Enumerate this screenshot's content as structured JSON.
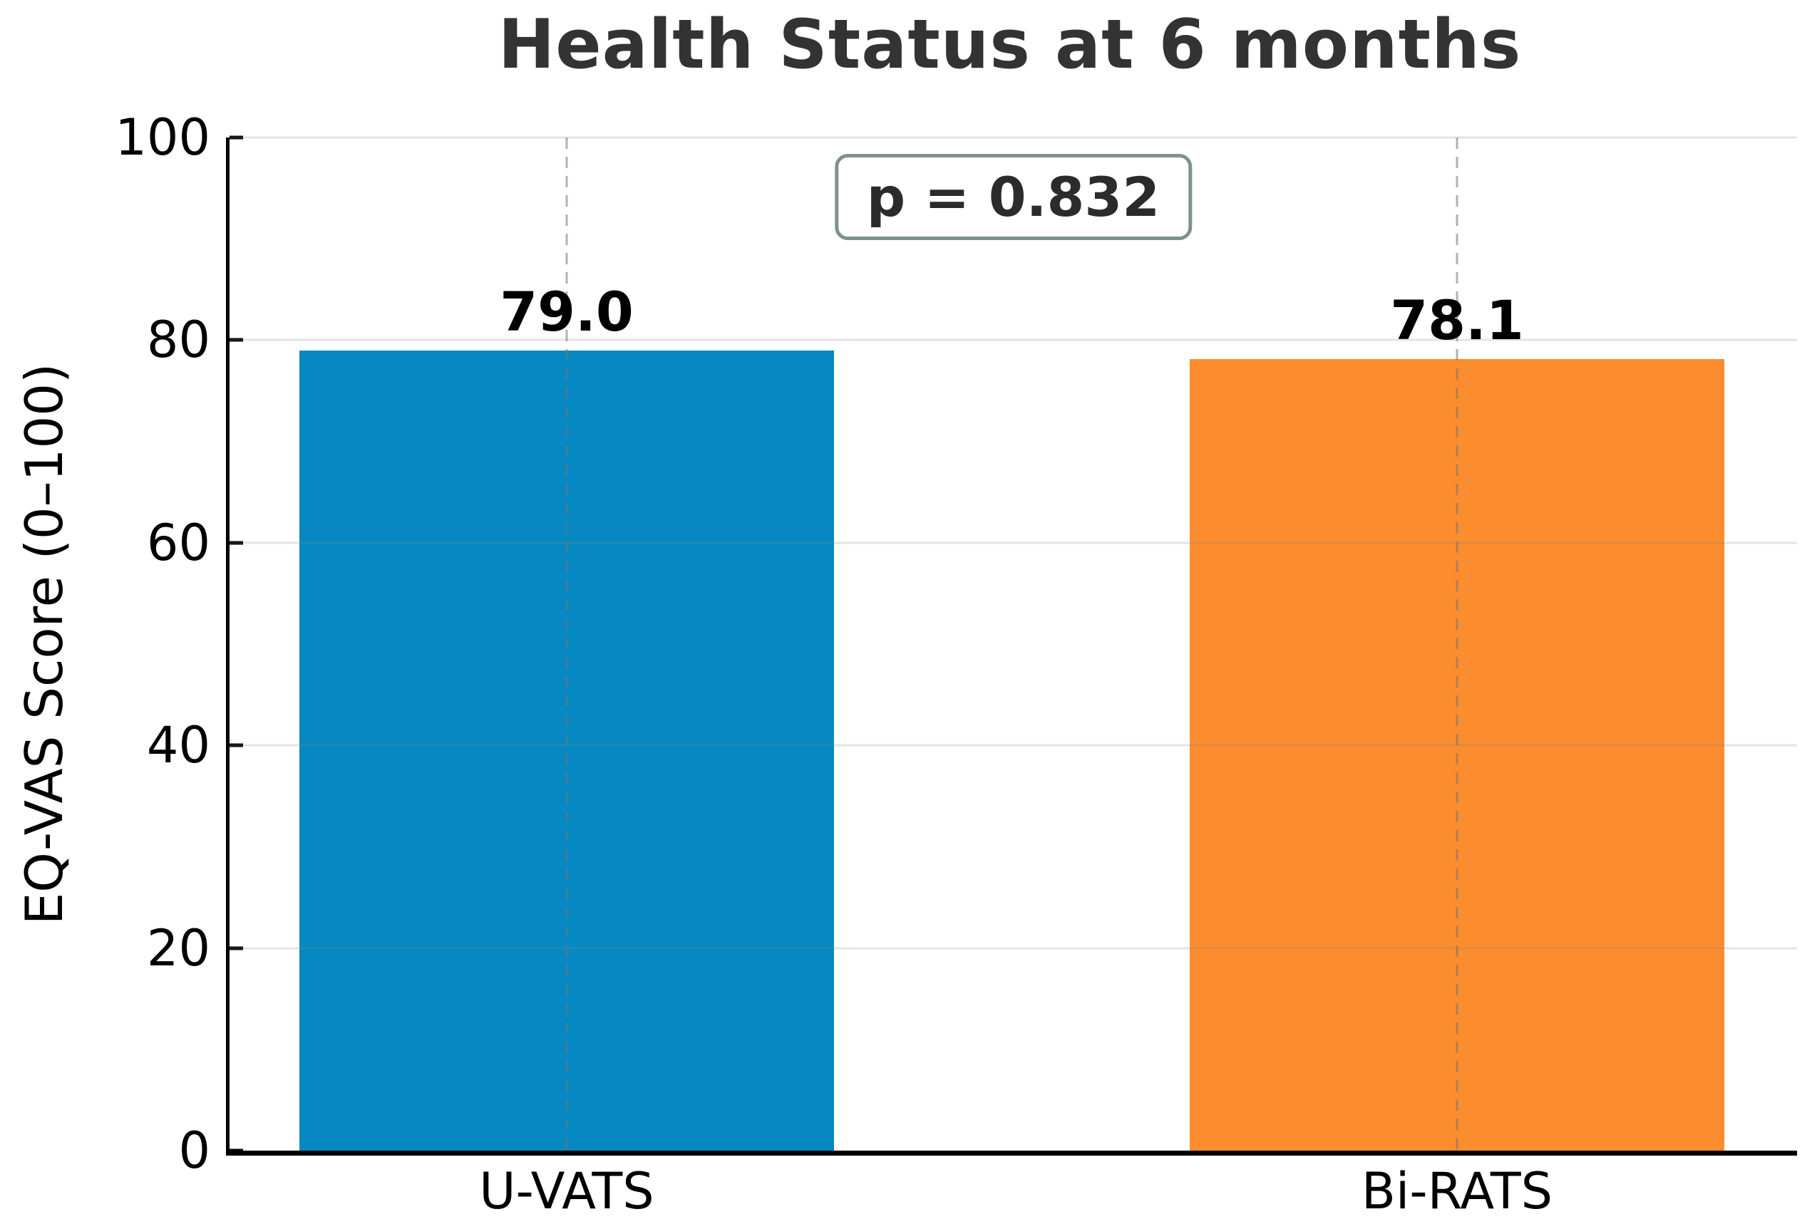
{
  "chart_data": {
    "type": "bar",
    "title": "Health Status at 6 months",
    "xlabel": "",
    "ylabel": "EQ-VAS Score (0–100)",
    "categories": [
      "U-VATS",
      "Bi-RATS"
    ],
    "values": [
      79.0,
      78.1
    ],
    "value_labels": [
      "79.0",
      "78.1"
    ],
    "bar_colors": [
      "#0689c2",
      "#fb8d2e"
    ],
    "annotation": "p = 0.832",
    "ylim": [
      0,
      100
    ],
    "yticks": [
      "0",
      "20",
      "40",
      "60",
      "80",
      "100"
    ],
    "grid": {
      "horizontal": "solid, light gray, above bars",
      "vertical": "dashed gray at bar centers, above bars"
    },
    "legend": "none"
  },
  "colors": {
    "title_text": "#333333",
    "bar_blue": "#0689c2",
    "bar_orange": "#fb8d2e",
    "annotation_border": "#7e9290",
    "axis_spine": "#000000"
  }
}
